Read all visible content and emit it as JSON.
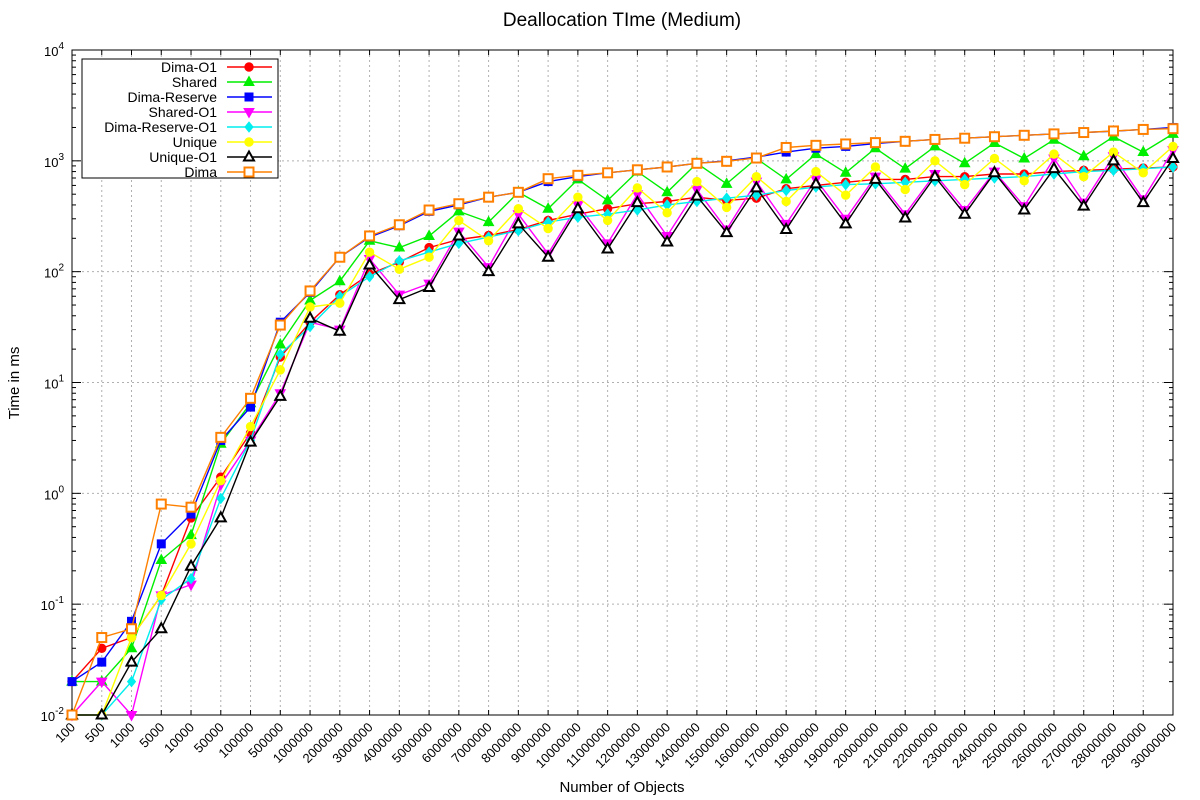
{
  "chart_data": {
    "type": "line",
    "title": "Deallocation TIme (Medium)",
    "xlabel": "Number of Objects",
    "ylabel": "Time in ms",
    "yscale": "log",
    "ylim": [
      0.01,
      10000
    ],
    "y_ticks": [
      {
        "base": "10",
        "exp": "-2"
      },
      {
        "base": "10",
        "exp": "-1"
      },
      {
        "base": "10",
        "exp": "0"
      },
      {
        "base": "10",
        "exp": "1"
      },
      {
        "base": "10",
        "exp": "2"
      },
      {
        "base": "10",
        "exp": "3"
      },
      {
        "base": "10",
        "exp": "4"
      }
    ],
    "grid": true,
    "legend_position": "top-left",
    "categories": [
      "100",
      "500",
      "1000",
      "5000",
      "10000",
      "50000",
      "100000",
      "500000",
      "1000000",
      "2000000",
      "3000000",
      "4000000",
      "5000000",
      "6000000",
      "7000000",
      "8000000",
      "9000000",
      "10000000",
      "11000000",
      "12000000",
      "13000000",
      "14000000",
      "15000000",
      "16000000",
      "17000000",
      "18000000",
      "19000000",
      "20000000",
      "21000000",
      "22000000",
      "23000000",
      "24000000",
      "25000000",
      "26000000",
      "27000000",
      "28000000",
      "29000000",
      "30000000"
    ],
    "series": [
      {
        "name": "Dima-O1",
        "color": "#ff0000",
        "marker": "circle",
        "values": [
          0.02,
          0.04,
          0.05,
          0.12,
          0.6,
          1.4,
          3.5,
          17,
          35,
          62,
          95,
          122,
          165,
          195,
          212,
          240,
          290,
          330,
          370,
          410,
          430,
          470,
          440,
          460,
          560,
          600,
          640,
          680,
          680,
          720,
          720,
          760,
          760,
          800,
          820,
          840,
          860,
          880
        ]
      },
      {
        "name": "Shared",
        "color": "#00ee00",
        "marker": "triangle",
        "values": [
          0.02,
          0.02,
          0.04,
          0.25,
          0.42,
          2.8,
          6.5,
          22,
          55,
          82,
          190,
          165,
          210,
          350,
          280,
          520,
          370,
          680,
          440,
          800,
          520,
          950,
          620,
          1050,
          680,
          1150,
          780,
          1300,
          850,
          1350,
          950,
          1450,
          1050,
          1550,
          1100,
          1650,
          1200,
          1750
        ]
      },
      {
        "name": "Dima-Reserve",
        "color": "#0000ff",
        "marker": "square",
        "values": [
          0.02,
          0.03,
          0.07,
          0.35,
          0.65,
          3.0,
          6.0,
          35,
          65,
          135,
          205,
          260,
          350,
          400,
          470,
          520,
          650,
          720,
          780,
          830,
          880,
          950,
          1000,
          1080,
          1200,
          1300,
          1350,
          1430,
          1500,
          1560,
          1600,
          1650,
          1700,
          1750,
          1800,
          1850,
          1920,
          2000
        ]
      },
      {
        "name": "Shared-O1",
        "color": "#ff00ff",
        "marker": "triangle-down",
        "values": [
          0.01,
          0.02,
          0.01,
          0.12,
          0.15,
          1.2,
          3.0,
          8,
          35,
          30,
          130,
          62,
          78,
          230,
          110,
          330,
          145,
          400,
          180,
          500,
          210,
          550,
          240,
          650,
          270,
          680,
          300,
          720,
          330,
          760,
          360,
          800,
          390,
          1050,
          420,
          1100,
          450,
          1250
        ]
      },
      {
        "name": "Dima-Reserve-O1",
        "color": "#00eeee",
        "marker": "diamond",
        "values": [
          0.01,
          0.01,
          0.02,
          0.11,
          0.17,
          0.9,
          3.0,
          18,
          32,
          60,
          90,
          125,
          150,
          180,
          205,
          235,
          280,
          310,
          330,
          360,
          400,
          430,
          460,
          490,
          540,
          580,
          610,
          620,
          640,
          660,
          680,
          700,
          720,
          760,
          800,
          820,
          850,
          880
        ]
      },
      {
        "name": "Unique",
        "color": "#ffff00",
        "marker": "circle",
        "values": [
          0.01,
          0.01,
          0.05,
          0.12,
          0.35,
          1.3,
          4.0,
          13,
          48,
          52,
          150,
          105,
          135,
          290,
          190,
          370,
          245,
          470,
          290,
          570,
          340,
          650,
          380,
          720,
          430,
          800,
          490,
          880,
          550,
          1000,
          610,
          1050,
          660,
          1150,
          720,
          1200,
          780,
          1350
        ]
      },
      {
        "name": "Unique-O1",
        "color": "#000000",
        "marker": "triangle",
        "values": [
          0.01,
          0.01,
          0.03,
          0.06,
          0.22,
          0.6,
          2.9,
          7.5,
          38,
          29,
          115,
          56,
          72,
          210,
          100,
          270,
          135,
          370,
          160,
          420,
          185,
          480,
          225,
          570,
          240,
          620,
          270,
          680,
          305,
          720,
          330,
          780,
          360,
          850,
          390,
          1000,
          420,
          1050
        ]
      },
      {
        "name": "Dima",
        "color": "#ff8000",
        "marker": "square-open",
        "values": [
          0.01,
          0.05,
          0.06,
          0.8,
          0.75,
          3.2,
          7.2,
          33,
          67,
          135,
          210,
          265,
          360,
          410,
          470,
          520,
          690,
          740,
          780,
          830,
          880,
          950,
          990,
          1060,
          1320,
          1380,
          1420,
          1460,
          1500,
          1560,
          1600,
          1650,
          1700,
          1750,
          1800,
          1860,
          1920,
          1950
        ]
      }
    ]
  }
}
